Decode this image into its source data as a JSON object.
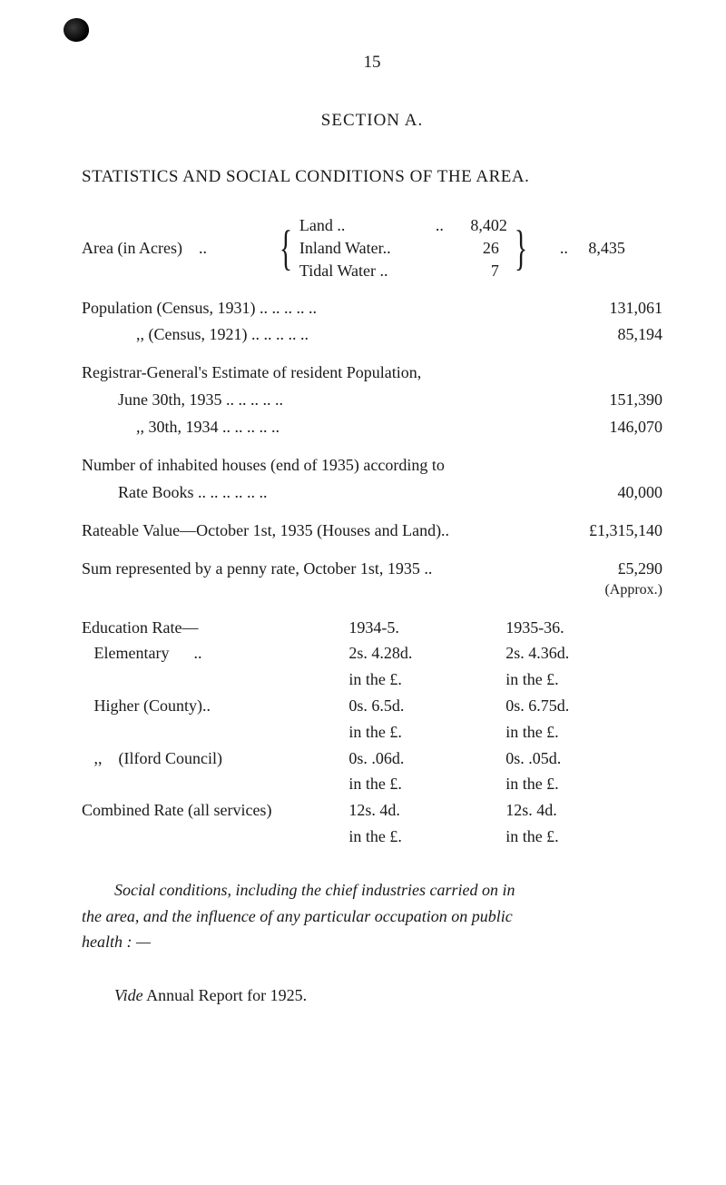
{
  "page_number": "15",
  "section_title": "SECTION A.",
  "heading": "STATISTICS AND SOCIAL CONDITIONS OF THE AREA.",
  "area": {
    "label": "Area (in Acres)",
    "dots": "..",
    "items": [
      {
        "label": "Land ..",
        "dots": "..",
        "value": "8,402"
      },
      {
        "label": "Inland Water..",
        "dots": "",
        "value": "26"
      },
      {
        "label": "Tidal Water ..",
        "dots": "",
        "value": "7"
      }
    ],
    "total_dots": "..",
    "total": "8,435"
  },
  "stats": [
    {
      "label": "Population (Census, 1931) ..   ..   ..   ..   ..",
      "value": "131,061"
    },
    {
      "label": ",,        (Census, 1921) ..   ..   ..   ..   ..",
      "value": "85,194",
      "indent": true
    }
  ],
  "registrar": {
    "lead": "Registrar-General's Estimate of resident Population,",
    "rows": [
      {
        "label": "June 30th, 1935       ..   ..   ..   ..   ..",
        "value": "151,390"
      },
      {
        "label": ",,  30th, 1934       ..   ..   ..   ..   ..",
        "value": "146,070",
        "indent": true
      }
    ]
  },
  "houses": {
    "lead": "Number of inhabited houses (end of 1935) according to",
    "row": {
      "label": "Rate Books        ..   ..   ..   ..   ..   ..",
      "value": "40,000"
    }
  },
  "rateable": {
    "label": "Rateable Value—October 1st, 1935 (Houses and Land)..",
    "value": "£1,315,140"
  },
  "penny": {
    "label": "Sum represented by a penny rate, October 1st, 1935   ..",
    "value": "£5,290",
    "approx": "(Approx.)"
  },
  "rates_table": {
    "header": {
      "c1": "Education Rate—",
      "c2": "1934-5.",
      "c3": "1935-36."
    },
    "rows": [
      {
        "c1": "   Elementary      ..",
        "c2": "2s. 4.28d.",
        "c3": "2s. 4.36d."
      },
      {
        "c1": "",
        "c2": "in the £.",
        "c3": "in the £."
      },
      {
        "c1": "   Higher (County)..",
        "c2": "0s. 6.5d.",
        "c3": "0s. 6.75d."
      },
      {
        "c1": "",
        "c2": "in the £.",
        "c3": "in the £."
      },
      {
        "c1": "   ,,    (Ilford Council)",
        "c2": "0s. .06d.",
        "c3": "0s. .05d."
      },
      {
        "c1": "",
        "c2": "in the £.",
        "c3": "in the £."
      },
      {
        "c1": "Combined Rate (all services)",
        "c2": "12s. 4d.",
        "c3": "12s. 4d."
      },
      {
        "c1": "",
        "c2": "in the £.",
        "c3": "in the £."
      }
    ]
  },
  "social": {
    "line1": "Social conditions, including the chief industries carried on in",
    "line2a": "the area, and the influence of any particular occupation on public",
    "line3": "health : —"
  },
  "vide": {
    "it": "Vide",
    "rest": " Annual Report for 1925."
  }
}
